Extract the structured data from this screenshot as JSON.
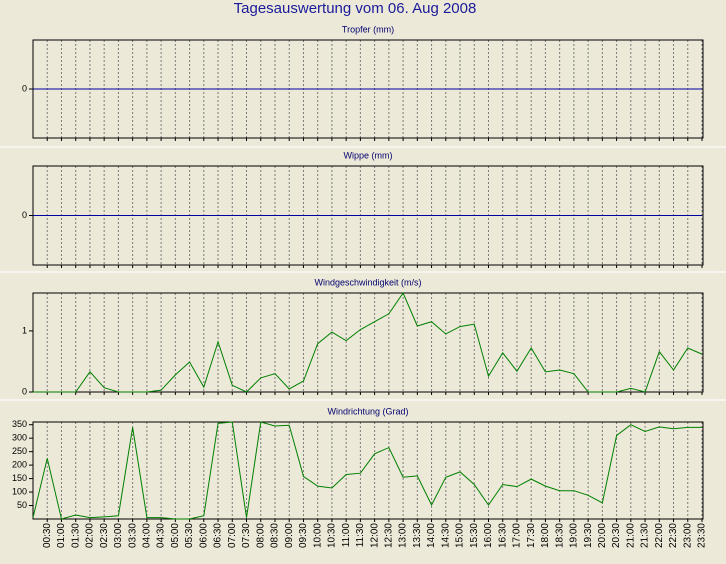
{
  "title": "Tagesauswertung vom 06. Aug 2008",
  "chart_data": [
    {
      "type": "line",
      "title": "Tropfer (mm)",
      "color": "#0000a0",
      "ylim": [
        -1,
        1
      ],
      "yticks": [
        0
      ],
      "values": [
        0,
        0,
        0,
        0,
        0,
        0,
        0,
        0,
        0,
        0,
        0,
        0,
        0,
        0,
        0,
        0,
        0,
        0,
        0,
        0,
        0,
        0,
        0,
        0,
        0,
        0,
        0,
        0,
        0,
        0,
        0,
        0,
        0,
        0,
        0,
        0,
        0,
        0,
        0,
        0,
        0,
        0,
        0,
        0,
        0,
        0,
        0,
        0
      ]
    },
    {
      "type": "line",
      "title": "Wippe (mm)",
      "color": "#0000a0",
      "ylim": [
        -1,
        1
      ],
      "yticks": [
        0
      ],
      "values": [
        0,
        0,
        0,
        0,
        0,
        0,
        0,
        0,
        0,
        0,
        0,
        0,
        0,
        0,
        0,
        0,
        0,
        0,
        0,
        0,
        0,
        0,
        0,
        0,
        0,
        0,
        0,
        0,
        0,
        0,
        0,
        0,
        0,
        0,
        0,
        0,
        0,
        0,
        0,
        0,
        0,
        0,
        0,
        0,
        0,
        0,
        0,
        0
      ]
    },
    {
      "type": "line",
      "title": "Windgeschwindigkeit (m/s)",
      "color": "#008000",
      "ylim": [
        0,
        1.62
      ],
      "yticks": [
        0,
        1
      ],
      "values": [
        0,
        0,
        0,
        0,
        0.33,
        0.07,
        0,
        0,
        0,
        0.03,
        0.28,
        0.49,
        0.08,
        0.82,
        0.11,
        0,
        0.23,
        0.3,
        0.05,
        0.18,
        0.79,
        0.98,
        0.84,
        1.02,
        1.15,
        1.28,
        1.62,
        1.08,
        1.15,
        0.95,
        1.07,
        1.11,
        0.26,
        0.64,
        0.34,
        0.72,
        0.33,
        0.36,
        0.3,
        0,
        0,
        0,
        0.06,
        0,
        0.66,
        0.36,
        0.72,
        0.62
      ]
    },
    {
      "type": "line",
      "title": "Windrichtung (Grad)",
      "color": "#008000",
      "ylim": [
        0,
        360
      ],
      "yticks": [
        50,
        100,
        150,
        200,
        250,
        300,
        350
      ],
      "values": [
        5,
        225,
        0,
        15,
        5,
        8,
        12,
        340,
        5,
        5,
        0,
        0,
        12,
        355,
        360,
        5,
        360,
        345,
        348,
        158,
        122,
        115,
        165,
        170,
        242,
        265,
        155,
        160,
        52,
        155,
        175,
        128,
        52,
        128,
        120,
        148,
        122,
        105,
        105,
        88,
        60,
        310,
        350,
        325,
        342,
        335,
        340,
        340
      ],
      "categories": [
        null,
        "00:30",
        "01:00",
        "01:30",
        "02:00",
        "02:30",
        "03:00",
        "03:30",
        "04:00",
        "04:30",
        "05:00",
        "05:30",
        "06:00",
        "06:30",
        "07:00",
        "07:30",
        "08:00",
        "08:30",
        "09:00",
        "09:30",
        "10:00",
        "10:30",
        "11:00",
        "11:30",
        "12:00",
        "12:30",
        "13:00",
        "13:30",
        "14:00",
        "14:30",
        "15:00",
        "15:30",
        "16:00",
        "16:30",
        "17:00",
        "17:30",
        "18:00",
        "18:30",
        "19:00",
        "19:30",
        "20:00",
        "20:30",
        "21:00",
        "21:30",
        "22:00",
        "22:30",
        "23:00",
        "23:30"
      ]
    }
  ]
}
